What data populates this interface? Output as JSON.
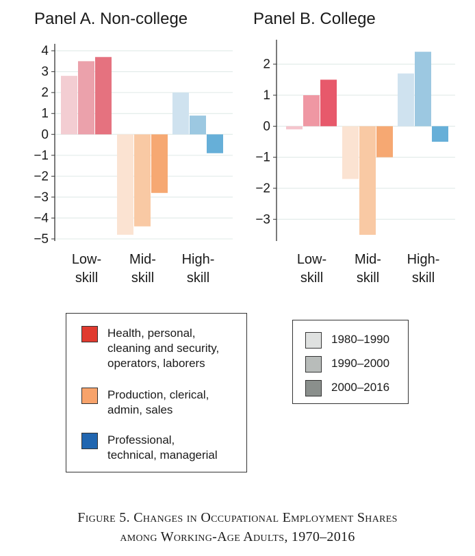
{
  "chart_data": [
    {
      "type": "bar",
      "title": "Panel A. Non-college",
      "categories": [
        "Low-\nskill",
        "Mid-\nskill",
        "High-\nskill"
      ],
      "series": [
        {
          "name": "1980–1990",
          "values": [
            2.8,
            -4.8,
            2.0
          ]
        },
        {
          "name": "1990–2000",
          "values": [
            3.5,
            -4.4,
            0.9
          ]
        },
        {
          "name": "2000–2016",
          "values": [
            3.7,
            -2.8,
            -0.9
          ]
        }
      ],
      "ylim": [
        -5.1,
        4.2
      ],
      "yticks": [
        4,
        3,
        2,
        1,
        0,
        -1,
        -2,
        -3,
        -4,
        -5
      ],
      "ytick_labels": [
        "4",
        "3",
        "2",
        "1",
        "0",
        "−1",
        "−2",
        "−3",
        "−4",
        "−5"
      ],
      "grid": true
    },
    {
      "type": "bar",
      "title": "Panel B. College",
      "categories": [
        "Low-\nskill",
        "Mid-\nskill",
        "High-\nskill"
      ],
      "series": [
        {
          "name": "1980–1990",
          "values": [
            -0.1,
            -1.7,
            1.7
          ]
        },
        {
          "name": "1990–2000",
          "values": [
            1.0,
            -3.5,
            2.4
          ]
        },
        {
          "name": "2000–2016",
          "values": [
            1.5,
            -1.0,
            -0.5
          ]
        }
      ],
      "ylim": [
        -3.7,
        2.7
      ],
      "yticks": [
        2,
        1,
        0,
        -1,
        -2,
        -3
      ],
      "ytick_labels": [
        "2",
        "1",
        "0",
        "−1",
        "−2",
        "−3"
      ],
      "grid": true
    }
  ],
  "colors": {
    "low": [
      "#f3cdd2",
      "#eba1ab",
      "#e5727f"
    ],
    "mid": [
      "#fbe3d2",
      "#f9c9a4",
      "#f6a872"
    ],
    "high": [
      "#cfe2ef",
      "#9cc8e1",
      "#66afd8"
    ],
    "low_b": [
      "#f5c5cd",
      "#ef97a3",
      "#e7596b"
    ]
  },
  "legend_groups": [
    {
      "label": "Health, personal,\ncleaning and security,\noperators, laborers",
      "color": "#e03a2f"
    },
    {
      "label": "Production, clerical,\nadmin, sales",
      "color": "#f7a36b"
    },
    {
      "label": "Professional,\ntechnical, managerial",
      "color": "#2166b0"
    }
  ],
  "legend_periods": [
    {
      "label": "1980–1990",
      "color": "#dfe1e0"
    },
    {
      "label": "1990–2000",
      "color": "#b8bcba"
    },
    {
      "label": "2000–2016",
      "color": "#8a8f8c"
    }
  ],
  "caption": {
    "line1": "Figure 5. Changes in Occupational Employment Shares",
    "line2": "among Working-Age Adults, 1970–2016"
  }
}
